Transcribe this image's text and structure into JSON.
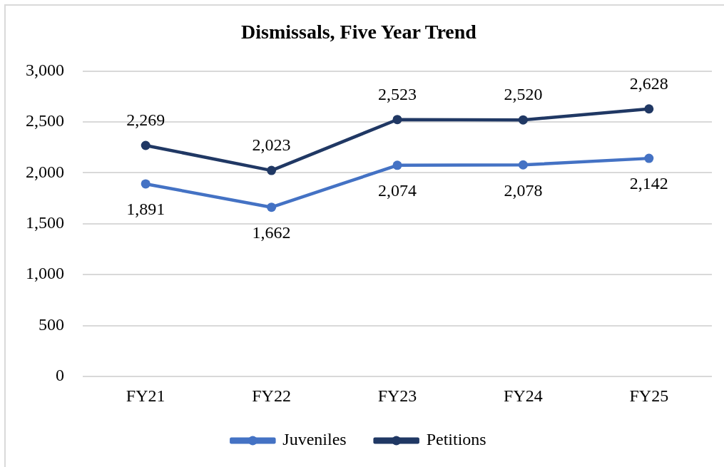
{
  "chart_data": {
    "type": "line",
    "title": "Dismissals, Five Year Trend",
    "categories": [
      "FY21",
      "FY22",
      "FY23",
      "FY24",
      "FY25"
    ],
    "series": [
      {
        "name": "Juveniles",
        "color": "#4472c4",
        "values": [
          1891,
          1662,
          2074,
          2078,
          2142
        ],
        "value_labels": [
          "1,891",
          "1,662",
          "2,074",
          "2,078",
          "2,142"
        ]
      },
      {
        "name": "Petitions",
        "color": "#203864",
        "values": [
          2269,
          2023,
          2523,
          2520,
          2628
        ],
        "value_labels": [
          "2,269",
          "2,023",
          "2,523",
          "2,520",
          "2,628"
        ]
      }
    ],
    "ylim": [
      0,
      3000
    ],
    "yticks": [
      0,
      500,
      {
        "value": 1000,
        "label": "1,000"
      },
      {
        "value": 1500,
        "label": "1,500"
      },
      {
        "value": 2000,
        "label": "2,000"
      },
      {
        "value": 2500,
        "label": "2,500"
      },
      {
        "value": 3000,
        "label": "3,000"
      }
    ],
    "grid": "y",
    "legend": "bottom",
    "marker": "circle",
    "line_style": "solid"
  }
}
